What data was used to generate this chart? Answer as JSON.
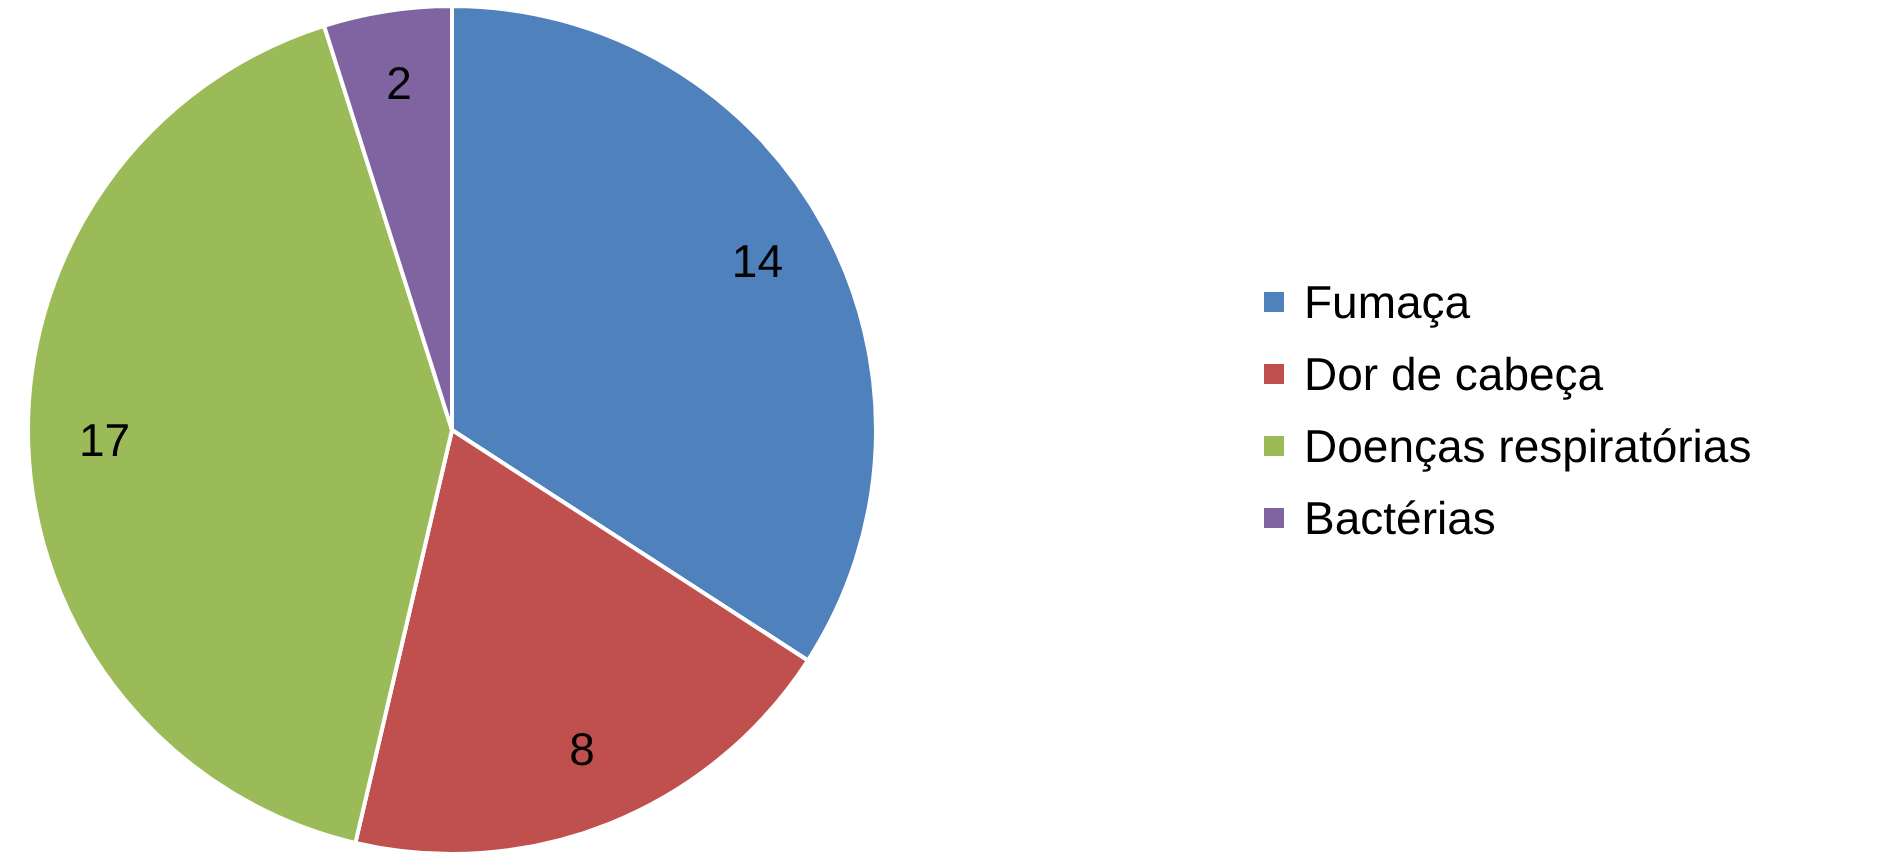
{
  "chart_data": {
    "type": "pie",
    "categories": [
      "Fumaça",
      "Dor de cabeça",
      "Doenças respiratórias",
      "Bactérias"
    ],
    "values": [
      14,
      8,
      17,
      2
    ],
    "colors": [
      "#4f81bd",
      "#c0504d",
      "#9bbb59",
      "#8064a2"
    ],
    "data_labels": true,
    "legend": "right"
  }
}
